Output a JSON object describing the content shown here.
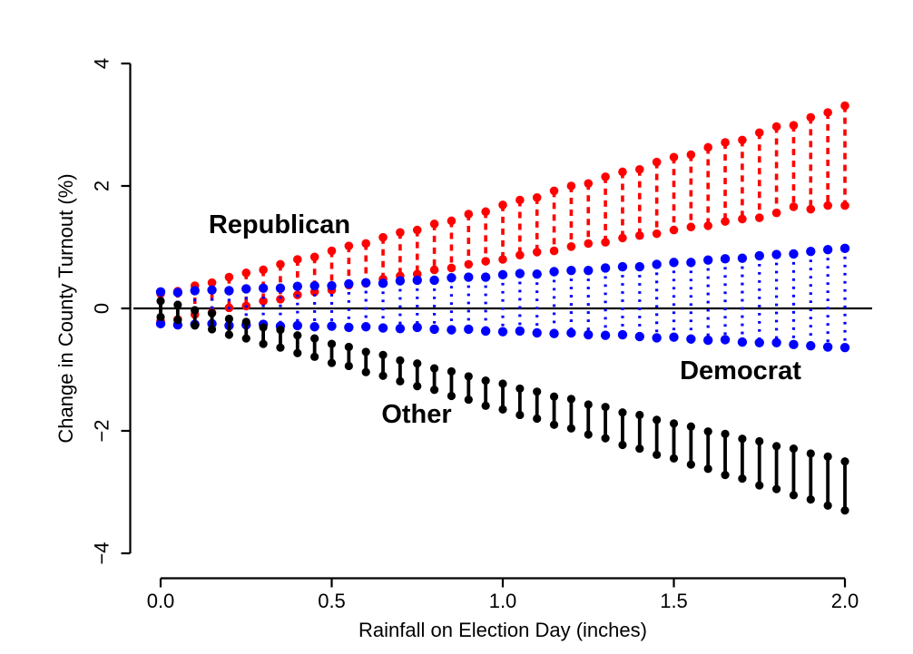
{
  "figure": {
    "background": "#FFFFFF",
    "zero_line_color": "#000000"
  },
  "chart_data": {
    "type": "scatter",
    "subtype": "vertical-interval-dumbbells",
    "title": "",
    "xlabel": "Rainfall on Election Day (inches)",
    "ylabel": "Change in County Turnout (%)",
    "xlim": [
      0,
      2
    ],
    "ylim": [
      -4,
      4
    ],
    "grid": false,
    "legend_position": "inline-annotations",
    "zero_reference_line": 0,
    "x_ticks": [
      {
        "value": 0.0,
        "label": "0.0"
      },
      {
        "value": 0.5,
        "label": "0.5"
      },
      {
        "value": 1.0,
        "label": "1.0"
      },
      {
        "value": 1.5,
        "label": "1.5"
      },
      {
        "value": 2.0,
        "label": "2.0"
      }
    ],
    "y_ticks": [
      {
        "value": 4,
        "label": "4"
      },
      {
        "value": 2,
        "label": "2"
      },
      {
        "value": 0,
        "label": "0"
      },
      {
        "value": -2,
        "label": "−2"
      },
      {
        "value": -4,
        "label": "−4"
      }
    ],
    "x": [
      0.0,
      0.05,
      0.1,
      0.15,
      0.2,
      0.25,
      0.3,
      0.35,
      0.4,
      0.45,
      0.5,
      0.55,
      0.6,
      0.65,
      0.7,
      0.75,
      0.8,
      0.85,
      0.9,
      0.95,
      1.0,
      1.05,
      1.1,
      1.15,
      1.2,
      1.25,
      1.3,
      1.35,
      1.4,
      1.45,
      1.5,
      1.55,
      1.6,
      1.65,
      1.7,
      1.75,
      1.8,
      1.85,
      1.9,
      1.95,
      2.0
    ],
    "series": [
      {
        "name": "Republican",
        "color": "#FF0000",
        "line_style": "dashed",
        "label": {
          "text": "Republican",
          "x": 0.3475,
          "y": 1.378
        },
        "upper": [
          0.24,
          0.28,
          0.37,
          0.42,
          0.51,
          0.58,
          0.63,
          0.72,
          0.8,
          0.84,
          0.94,
          1.02,
          1.06,
          1.16,
          1.24,
          1.28,
          1.38,
          1.43,
          1.54,
          1.58,
          1.69,
          1.77,
          1.81,
          1.92,
          2.0,
          2.04,
          2.15,
          2.23,
          2.27,
          2.39,
          2.47,
          2.51,
          2.63,
          2.71,
          2.75,
          2.87,
          2.97,
          2.99,
          3.12,
          3.2,
          3.31
        ],
        "lower": [
          -0.21,
          -0.18,
          -0.1,
          -0.07,
          0.01,
          0.04,
          0.12,
          0.15,
          0.22,
          0.27,
          0.3,
          0.38,
          0.41,
          0.48,
          0.53,
          0.56,
          0.63,
          0.66,
          0.72,
          0.77,
          0.8,
          0.87,
          0.92,
          0.94,
          1.01,
          1.06,
          1.08,
          1.15,
          1.19,
          1.22,
          1.28,
          1.33,
          1.35,
          1.42,
          1.46,
          1.48,
          1.56,
          1.66,
          1.62,
          1.68,
          1.68
        ]
      },
      {
        "name": "Democrat",
        "color": "#0000FF",
        "line_style": "dotted",
        "label": {
          "text": "Democrat",
          "x": 1.695,
          "y": -1.007
        },
        "upper": [
          0.27,
          0.26,
          0.29,
          0.3,
          0.29,
          0.32,
          0.33,
          0.33,
          0.36,
          0.37,
          0.37,
          0.4,
          0.42,
          0.41,
          0.45,
          0.46,
          0.46,
          0.5,
          0.51,
          0.51,
          0.55,
          0.57,
          0.56,
          0.6,
          0.62,
          0.62,
          0.66,
          0.68,
          0.68,
          0.72,
          0.75,
          0.75,
          0.79,
          0.81,
          0.82,
          0.86,
          0.88,
          0.89,
          0.93,
          0.96,
          0.98
        ],
        "lower": [
          -0.25,
          -0.27,
          -0.26,
          -0.25,
          -0.28,
          -0.27,
          -0.26,
          -0.29,
          -0.28,
          -0.3,
          -0.29,
          -0.31,
          -0.3,
          -0.32,
          -0.33,
          -0.31,
          -0.34,
          -0.35,
          -0.34,
          -0.37,
          -0.38,
          -0.37,
          -0.4,
          -0.41,
          -0.4,
          -0.43,
          -0.44,
          -0.43,
          -0.46,
          -0.48,
          -0.47,
          -0.5,
          -0.52,
          -0.51,
          -0.55,
          -0.56,
          -0.56,
          -0.59,
          -0.61,
          -0.63,
          -0.64
        ]
      },
      {
        "name": "Other",
        "color": "#000000",
        "line_style": "solid",
        "label": {
          "text": "Other",
          "x": 0.748,
          "y": -1.719
        },
        "upper": [
          0.12,
          0.06,
          -0.03,
          -0.08,
          -0.17,
          -0.22,
          -0.31,
          -0.35,
          -0.44,
          -0.49,
          -0.58,
          -0.63,
          -0.71,
          -0.76,
          -0.85,
          -0.9,
          -0.98,
          -1.03,
          -1.11,
          -1.18,
          -1.23,
          -1.31,
          -1.36,
          -1.44,
          -1.48,
          -1.57,
          -1.61,
          -1.7,
          -1.74,
          -1.82,
          -1.88,
          -1.93,
          -2.01,
          -2.05,
          -2.13,
          -2.17,
          -2.25,
          -2.29,
          -2.37,
          -2.42,
          -2.5
        ],
        "lower": [
          -0.14,
          -0.19,
          -0.28,
          -0.34,
          -0.43,
          -0.49,
          -0.58,
          -0.64,
          -0.73,
          -0.79,
          -0.89,
          -0.94,
          -1.04,
          -1.1,
          -1.19,
          -1.27,
          -1.33,
          -1.43,
          -1.49,
          -1.59,
          -1.65,
          -1.74,
          -1.8,
          -1.9,
          -1.96,
          -2.06,
          -2.12,
          -2.23,
          -2.29,
          -2.39,
          -2.45,
          -2.55,
          -2.62,
          -2.72,
          -2.78,
          -2.89,
          -2.95,
          -3.05,
          -3.12,
          -3.22,
          -3.3
        ]
      }
    ]
  }
}
